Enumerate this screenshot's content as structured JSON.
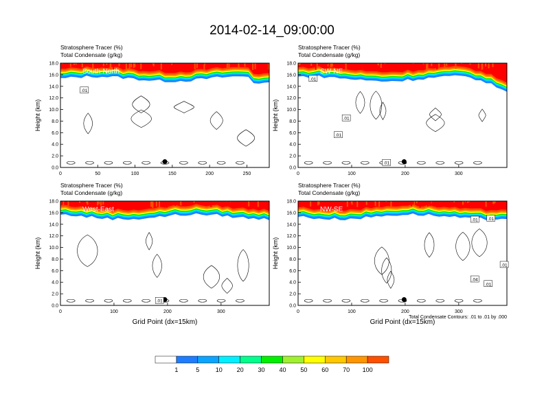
{
  "figure": {
    "title": "2014-02-14_09:00:00",
    "contour_note": "Total Condensate Contours: .01 to .01 by .000"
  },
  "chart_data": [
    {
      "type": "heatmap",
      "panel_label": "South-North",
      "title_lines": [
        "Stratosphere Tracer   (%)",
        "Total Condensate   (g/kg)"
      ],
      "ylabel": "Height (km)",
      "xlabel": "",
      "xlim": [
        0,
        280
      ],
      "ylim": [
        0,
        18
      ],
      "xticks": [
        0,
        50,
        100,
        150,
        200,
        250
      ],
      "yticks": [
        "0.0",
        "2.0",
        "4.0",
        "6.0",
        "8.0",
        "10.0",
        "12.0",
        "14.0",
        "16.0",
        "18.0"
      ],
      "marker": {
        "x": 140,
        "y": 1.0
      },
      "contour_labels": [
        {
          "text": ".01",
          "x": 32,
          "y": 13.3
        }
      ],
      "tracer_top_km": [
        16.0,
        15.6,
        15.4,
        15.3,
        15.2,
        15.3,
        15.2,
        15.1,
        15.2,
        15.4,
        15.5,
        15.4,
        15.3,
        15.1,
        15.0,
        14.9,
        15.0,
        15.1,
        14.9,
        14.7,
        14.4,
        14.2,
        14.2,
        14.8
      ]
    },
    {
      "type": "heatmap",
      "panel_label": "SW-NE",
      "title_lines": [
        "Stratosphere Tracer   (%)",
        "Total Condensate   (g/kg)"
      ],
      "ylabel": "Height (km)",
      "xlabel": "",
      "xlim": [
        0,
        390
      ],
      "ylim": [
        0,
        18
      ],
      "xticks": [
        0,
        100,
        200,
        300
      ],
      "yticks": [
        "0.0",
        "2.0",
        "4.0",
        "6.0",
        "8.0",
        "10.0",
        "12.0",
        "14.0",
        "16.0",
        "18.0"
      ],
      "marker": {
        "x": 198,
        "y": 1.0
      },
      "contour_labels": [
        {
          "text": ".01",
          "x": 28,
          "y": 15.3
        },
        {
          "text": ".01",
          "x": 90,
          "y": 8.5
        },
        {
          "text": ".01",
          "x": 75,
          "y": 5.6
        },
        {
          "text": ".01",
          "x": 165,
          "y": 0.8
        }
      ]
    },
    {
      "type": "heatmap",
      "panel_label": "West-East",
      "title_lines": [
        "Stratosphere Tracer   (%)",
        "Total Condensate   (g/kg)"
      ],
      "ylabel": "Height (km)",
      "xlabel": "Grid Point (dx=15km)",
      "xlim": [
        0,
        390
      ],
      "ylim": [
        0,
        18
      ],
      "xticks": [
        0,
        100,
        200,
        300
      ],
      "yticks": [
        "0.0",
        "2.0",
        "4.0",
        "6.0",
        "8.0",
        "10.0",
        "12.0",
        "14.0",
        "16.0",
        "18.0"
      ],
      "marker": {
        "x": 195,
        "y": 1.0
      },
      "contour_labels": [
        {
          "text": ".01",
          "x": 185,
          "y": 0.8
        }
      ]
    },
    {
      "type": "heatmap",
      "panel_label": "NW-SE",
      "title_lines": [
        "Stratosphere Tracer   (%)",
        "Total Condensate   (g/kg)"
      ],
      "ylabel": "Height (km)",
      "xlabel": "Grid Point (dx=15km)",
      "xlim": [
        0,
        390
      ],
      "ylim": [
        0,
        18
      ],
      "xticks": [
        0,
        100,
        200,
        300
      ],
      "yticks": [
        "0.0",
        "2.0",
        "4.0",
        "6.0",
        "8.0",
        "10.0",
        "12.0",
        "14.0",
        "16.0",
        "18.0"
      ],
      "marker": {
        "x": 198,
        "y": 1.0
      },
      "contour_labels": [
        {
          "text": ".01",
          "x": 330,
          "y": 14.8
        },
        {
          "text": ".01",
          "x": 360,
          "y": 15.0
        },
        {
          "text": ".01",
          "x": 385,
          "y": 7.0
        },
        {
          "text": ".04",
          "x": 330,
          "y": 4.5
        },
        {
          "text": ".01",
          "x": 355,
          "y": 3.7
        }
      ]
    }
  ],
  "colorbar": {
    "labels": [
      "1",
      "5",
      "10",
      "20",
      "30",
      "40",
      "50",
      "60",
      "70",
      "100"
    ],
    "colors": [
      "#ffffff",
      "#1e7dff",
      "#0aa5ff",
      "#00f0ff",
      "#00ff8c",
      "#00f000",
      "#a0f030",
      "#ffff00",
      "#ffc800",
      "#ff9600",
      "#ff5000",
      "#ff0000"
    ]
  }
}
